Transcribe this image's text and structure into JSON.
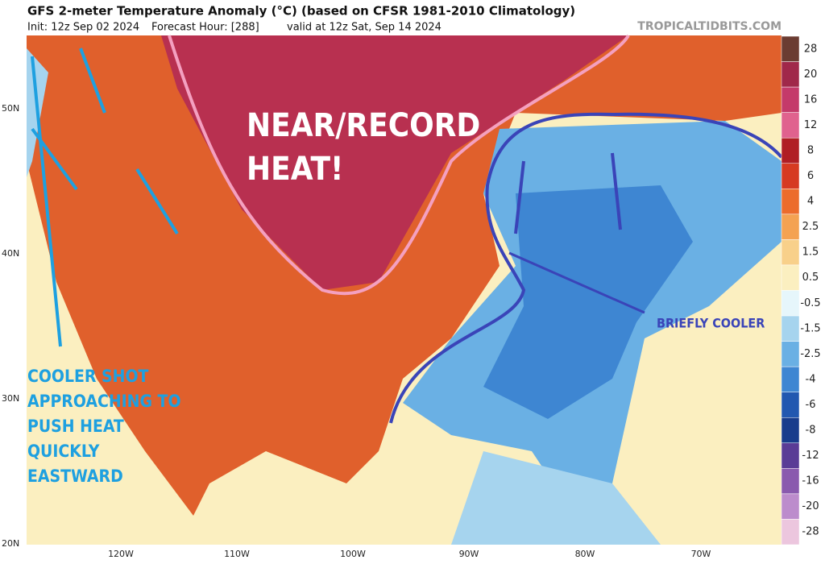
{
  "header": {
    "title": "GFS 2-meter Temperature Anomaly (°C) (based on CFSR 1981-2010 Climatology)",
    "init": "Init: 12z Sep 02 2024",
    "forecast_hour": "Forecast Hour: [288]",
    "valid": "valid at 12z Sat, Sep 14 2024",
    "source": "TROPICALTIDBITS.COM"
  },
  "map": {
    "latitudes": [
      "50N",
      "40N",
      "30N",
      "20N"
    ],
    "longitudes": [
      "120W",
      "110W",
      "100W",
      "90W",
      "80W",
      "70W"
    ]
  },
  "annotations": {
    "heat": [
      "NEAR/RECORD",
      "HEAT!"
    ],
    "briefly_cooler": "BRIEFLY COOLER",
    "cooler_shot": [
      "COOLER SHOT",
      "APPROACHING TO",
      "PUSH HEAT",
      "QUICKLY",
      "EASTWARD"
    ]
  },
  "colorbar": [
    {
      "label": "28",
      "color": "#6b3c32"
    },
    {
      "label": "20",
      "color": "#a0284a"
    },
    {
      "label": "16",
      "color": "#c43a6a"
    },
    {
      "label": "12",
      "color": "#e0628e"
    },
    {
      "label": "8",
      "color": "#b01e24"
    },
    {
      "label": "6",
      "color": "#d63a22"
    },
    {
      "label": "4",
      "color": "#ec6c2c"
    },
    {
      "label": "2.5",
      "color": "#f4a252"
    },
    {
      "label": "1.5",
      "color": "#f8d08a"
    },
    {
      "label": "0.5",
      "color": "#fbefc0"
    },
    {
      "label": "-0.5",
      "color": "#e6f6fb"
    },
    {
      "label": "-1.5",
      "color": "#a6d4ee"
    },
    {
      "label": "-2.5",
      "color": "#6ab0e4"
    },
    {
      "label": "-4",
      "color": "#3e86d2"
    },
    {
      "label": "-6",
      "color": "#2258b0"
    },
    {
      "label": "-8",
      "color": "#183c8c"
    },
    {
      "label": "-12",
      "color": "#5a3c96"
    },
    {
      "label": "-16",
      "color": "#8a5aae"
    },
    {
      "label": "-20",
      "color": "#bc8ccc"
    },
    {
      "label": "-28",
      "color": "#ecc6de"
    }
  ]
}
